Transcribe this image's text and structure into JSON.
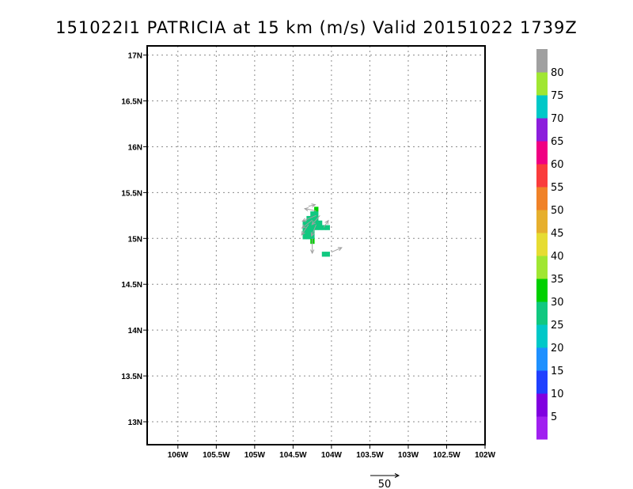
{
  "chart_data": {
    "type": "heatmap",
    "title": "151022I1 PATRICIA at 15 km (m/s) Valid 20151022 1739Z",
    "xlim": [
      -106.4,
      -102
    ],
    "ylim": [
      12.75,
      17.1
    ],
    "x_ticks": [
      -106,
      -105.5,
      -105,
      -104.5,
      -104,
      -103.5,
      -103,
      -102.5,
      -102
    ],
    "x_tick_labels": [
      "106W",
      "105.5W",
      "105W",
      "104.5W",
      "104W",
      "103.5W",
      "103W",
      "102.5W",
      "102W"
    ],
    "y_ticks": [
      13,
      13.5,
      14,
      14.5,
      15,
      15.5,
      16,
      16.5,
      17
    ],
    "y_tick_labels": [
      "13N",
      "13.5N",
      "14N",
      "14.5N",
      "15N",
      "15.5N",
      "16N",
      "16.5N",
      "17N"
    ],
    "grid": true,
    "colorbar": {
      "labels": [
        "5",
        "10",
        "15",
        "20",
        "25",
        "30",
        "35",
        "40",
        "45",
        "50",
        "55",
        "60",
        "65",
        "70",
        "75",
        "80"
      ],
      "colors": [
        "#a020f0",
        "#8000e0",
        "#2040ff",
        "#1e90ff",
        "#00c8c8",
        "#10c880",
        "#00d000",
        "#a0e632",
        "#e6dc32",
        "#e6af2d",
        "#f08228",
        "#fa3c3c",
        "#f00082",
        "#8c1edc",
        "#00c8c8",
        "#a0e632",
        "#a0a0a0"
      ]
    },
    "cells": [
      {
        "lon": -104.2,
        "lat": 15.32,
        "color": "#00d000"
      },
      {
        "lon": -104.2,
        "lat": 15.27,
        "color": "#10c880"
      },
      {
        "lon": -104.25,
        "lat": 15.27,
        "color": "#10c880"
      },
      {
        "lon": -104.3,
        "lat": 15.22,
        "color": "#10c880"
      },
      {
        "lon": -104.25,
        "lat": 15.22,
        "color": "#10c880"
      },
      {
        "lon": -104.2,
        "lat": 15.22,
        "color": "#10c880"
      },
      {
        "lon": -104.35,
        "lat": 15.17,
        "color": "#10c880"
      },
      {
        "lon": -104.3,
        "lat": 15.17,
        "color": "#10c880"
      },
      {
        "lon": -104.25,
        "lat": 15.17,
        "color": "#10c880"
      },
      {
        "lon": -104.2,
        "lat": 15.17,
        "color": "#10c880"
      },
      {
        "lon": -104.15,
        "lat": 15.17,
        "color": "#10c880"
      },
      {
        "lon": -104.35,
        "lat": 15.12,
        "color": "#10c880"
      },
      {
        "lon": -104.3,
        "lat": 15.12,
        "color": "#10c880"
      },
      {
        "lon": -104.25,
        "lat": 15.12,
        "color": "#10c880"
      },
      {
        "lon": -104.2,
        "lat": 15.12,
        "color": "#10c880"
      },
      {
        "lon": -104.15,
        "lat": 15.12,
        "color": "#10c880"
      },
      {
        "lon": -104.1,
        "lat": 15.12,
        "color": "#10c880"
      },
      {
        "lon": -104.05,
        "lat": 15.12,
        "color": "#10c880"
      },
      {
        "lon": -104.35,
        "lat": 15.07,
        "color": "#10c880"
      },
      {
        "lon": -104.3,
        "lat": 15.07,
        "color": "#10c880"
      },
      {
        "lon": -104.25,
        "lat": 15.07,
        "color": "#10c880"
      },
      {
        "lon": -104.35,
        "lat": 15.02,
        "color": "#10c880"
      },
      {
        "lon": -104.3,
        "lat": 15.02,
        "color": "#10c880"
      },
      {
        "lon": -104.25,
        "lat": 15.02,
        "color": "#10c880"
      },
      {
        "lon": -104.25,
        "lat": 14.97,
        "color": "#00d000"
      },
      {
        "lon": -104.1,
        "lat": 14.83,
        "color": "#10c880"
      },
      {
        "lon": -104.05,
        "lat": 14.83,
        "color": "#10c880"
      }
    ],
    "vectors": [
      {
        "lon": -104.2,
        "lat": 15.3,
        "u": -20,
        "v": 4
      },
      {
        "lon": -104.2,
        "lat": 15.25,
        "u": -24,
        "v": -10
      },
      {
        "lon": -104.25,
        "lat": 15.2,
        "u": -18,
        "v": -14
      },
      {
        "lon": -104.3,
        "lat": 15.15,
        "u": -12,
        "v": -18
      },
      {
        "lon": -104.2,
        "lat": 15.15,
        "u": -8,
        "v": -20
      },
      {
        "lon": -104.3,
        "lat": 15.35,
        "u": 12,
        "v": 3
      },
      {
        "lon": -104.1,
        "lat": 15.12,
        "u": 8,
        "v": 12
      },
      {
        "lon": -104.0,
        "lat": 14.85,
        "u": 18,
        "v": 8
      },
      {
        "lon": -104.25,
        "lat": 15.0,
        "u": 0,
        "v": -26
      },
      {
        "lon": -104.15,
        "lat": 15.25,
        "u": -14,
        "v": -16
      }
    ],
    "reference_vector": {
      "label": "50",
      "value": 50
    }
  }
}
